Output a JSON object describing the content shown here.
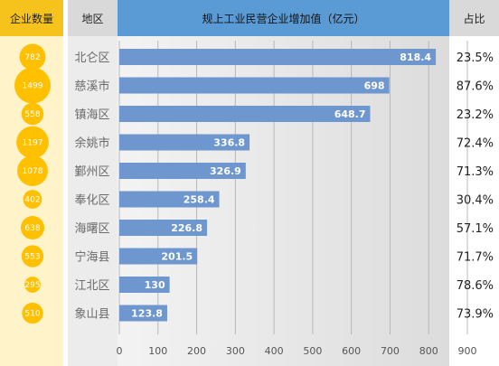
{
  "header": {
    "count_label": "企业数量",
    "region_label": "地区",
    "title": "规上工业民营企业增加值（亿元）",
    "share_label": "占比"
  },
  "chart_data": {
    "type": "bar",
    "orientation": "horizontal",
    "title": "规上工业民营企业增加值（亿元）",
    "categories": [
      "北仑区",
      "慈溪市",
      "镇海区",
      "余姚市",
      "鄞州区",
      "奉化区",
      "海曙区",
      "宁海县",
      "江北区",
      "象山县"
    ],
    "values": [
      818.4,
      698,
      648.7,
      336.8,
      326.9,
      258.4,
      226.8,
      201.5,
      130,
      123.8
    ],
    "value_labels": [
      "818.4",
      "698",
      "648.7",
      "336.8",
      "326.9",
      "258.4",
      "226.8",
      "201.5",
      "130",
      "123.8"
    ],
    "enterprise_counts": [
      "782",
      "1499",
      "558",
      "1197",
      "1078",
      "402",
      "638",
      "553",
      "295",
      "510"
    ],
    "shares": [
      "23.5%",
      "87.6%",
      "23.2%",
      "72.4%",
      "71.3%",
      "30.4%",
      "57.1%",
      "71.7%",
      "78.6%",
      "73.9%"
    ],
    "xlim": [
      0,
      900
    ],
    "xticks": [
      "0",
      "100",
      "200",
      "300",
      "400",
      "500",
      "600",
      "700",
      "800",
      "900"
    ],
    "grid": true,
    "colors": {
      "bar": "#6f97cf",
      "bubble": "#ffc000",
      "header_count": "#f5c31c",
      "header_title": "#5b9bd5"
    }
  }
}
